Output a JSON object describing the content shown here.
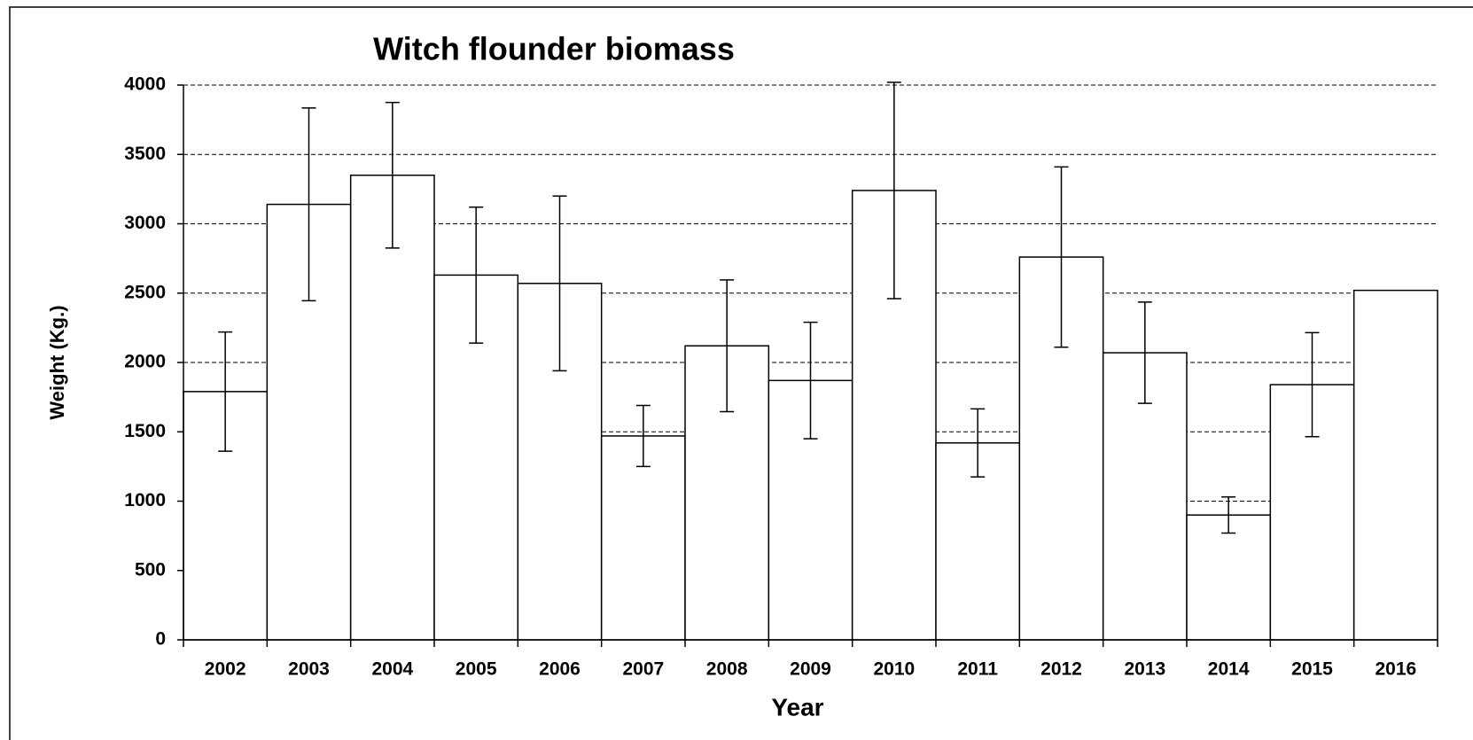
{
  "chart_data": {
    "type": "bar",
    "title": "Witch flounder biomass",
    "x_label": "Year",
    "y_label": "Weight (Kg.)",
    "categories": [
      "2002",
      "2003",
      "2004",
      "2005",
      "2006",
      "2007",
      "2008",
      "2009",
      "2010",
      "2011",
      "2012",
      "2013",
      "2014",
      "2015",
      "2016"
    ],
    "values": [
      1790,
      3140,
      3350,
      2630,
      2570,
      1470,
      2120,
      1870,
      3240,
      1420,
      2760,
      2070,
      900,
      1840,
      2520
    ],
    "errors": [
      430,
      695,
      525,
      490,
      630,
      220,
      475,
      420,
      780,
      245,
      650,
      365,
      130,
      375,
      null
    ],
    "color": "#ffffff",
    "ylim": [
      0,
      4000
    ],
    "yticks": [
      0,
      500,
      1000,
      1500,
      2000,
      2500,
      3000,
      3500,
      4000
    ],
    "grid": true
  }
}
